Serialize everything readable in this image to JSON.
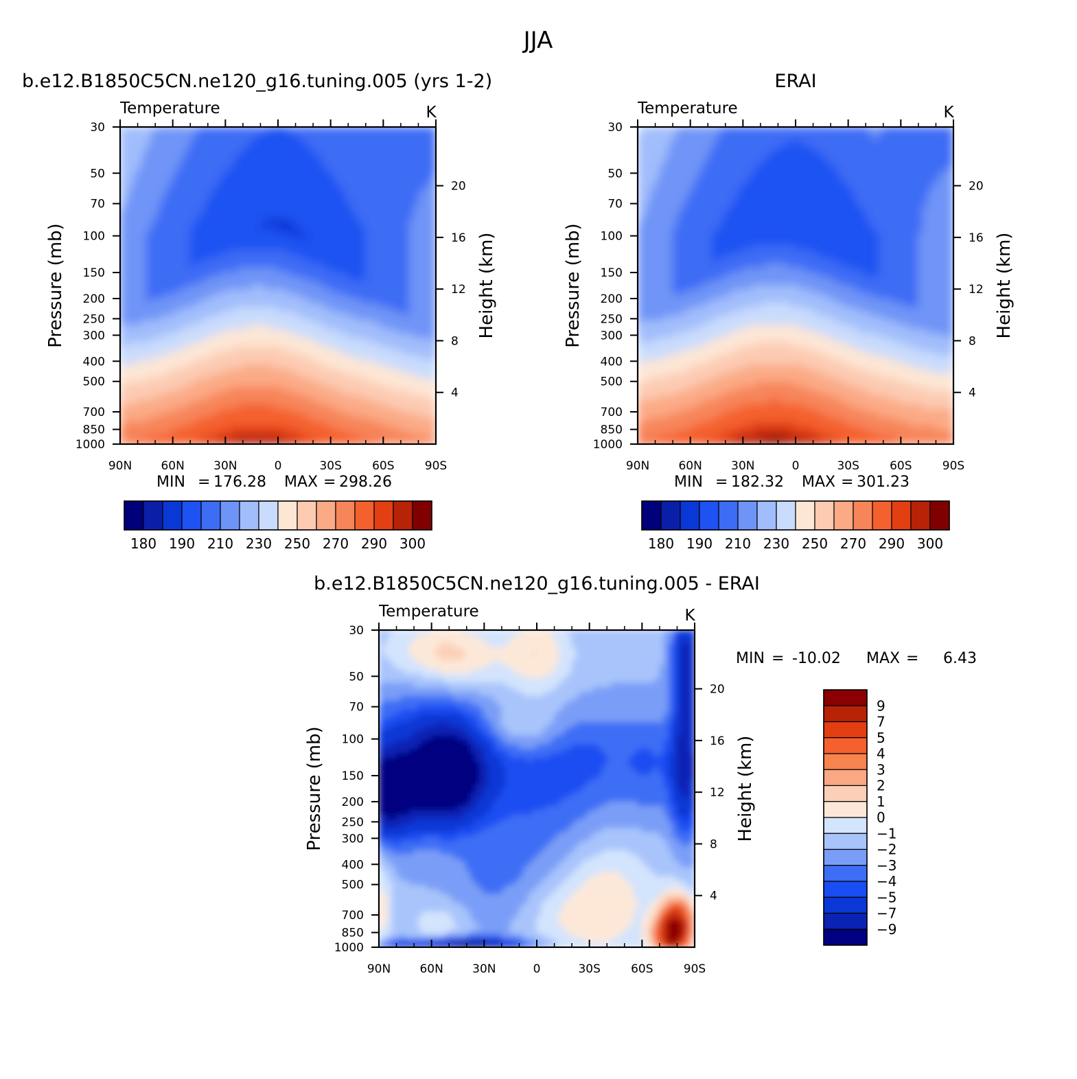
{
  "figure": {
    "title": "JJA",
    "colors": {
      "full_field": [
        "#00007a",
        "#0a1fa8",
        "#0a38d6",
        "#1f52f2",
        "#3d6cf5",
        "#6f94f7",
        "#a1bdfb",
        "#c9dcfd",
        "#fde6d4",
        "#fccbb2",
        "#fbaa86",
        "#f7855a",
        "#f4612f",
        "#e23f12",
        "#b82207",
        "#800000"
      ],
      "diff_field": [
        "#000080",
        "#0a23b4",
        "#0a38d6",
        "#1a4ef2",
        "#3e6ef5",
        "#7a9ef7",
        "#a8c4fb",
        "#d3e4fd",
        "#fde8d8",
        "#fbd0b8",
        "#f9a883",
        "#f7834f",
        "#f4612f",
        "#e23f12",
        "#b82207",
        "#8b0000"
      ]
    }
  },
  "chart_data": [
    {
      "id": "model",
      "type": "contour",
      "title": "b.e12.B1850C5CN.ne120_g16.tuning.005 (yrs 1-2)",
      "subtitle": "Temperature",
      "units": "K",
      "ylabel": "Pressure (mb)",
      "y2label": "Height (km)",
      "xticks": [
        "90N",
        "60N",
        "30N",
        "0",
        "30S",
        "60S",
        "90S"
      ],
      "xlim": [
        90,
        -90
      ],
      "yticks": [
        30,
        50,
        70,
        100,
        150,
        200,
        250,
        300,
        400,
        500,
        700,
        850,
        1000
      ],
      "ylim": [
        1000,
        30
      ],
      "y2ticks": [
        4,
        8,
        12,
        16,
        20
      ],
      "min_label": "MIN",
      "min": "176.28",
      "max_label": "MAX",
      "max": "298.26",
      "colorbar": {
        "levels": [
          180,
          185,
          190,
          200,
          210,
          220,
          230,
          240,
          250,
          260,
          270,
          280,
          290,
          295,
          300
        ],
        "labels": [
          "180",
          "190",
          "210",
          "230",
          "250",
          "270",
          "290",
          "300"
        ]
      }
    },
    {
      "id": "obs",
      "type": "contour",
      "title": "ERAI",
      "subtitle": "Temperature",
      "units": "K",
      "ylabel": "Pressure (mb)",
      "y2label": "Height (km)",
      "xticks": [
        "90N",
        "60N",
        "30N",
        "0",
        "30S",
        "60S",
        "90S"
      ],
      "xlim": [
        90,
        -90
      ],
      "yticks": [
        30,
        50,
        70,
        100,
        150,
        200,
        250,
        300,
        400,
        500,
        700,
        850,
        1000
      ],
      "ylim": [
        1000,
        30
      ],
      "y2ticks": [
        4,
        8,
        12,
        16,
        20
      ],
      "min_label": "MIN",
      "min": "182.32",
      "max_label": "MAX",
      "max": "301.23",
      "colorbar": {
        "levels": [
          180,
          185,
          190,
          200,
          210,
          220,
          230,
          240,
          250,
          260,
          270,
          280,
          290,
          295,
          300
        ],
        "labels": [
          "180",
          "190",
          "210",
          "230",
          "250",
          "270",
          "290",
          "300"
        ]
      }
    },
    {
      "id": "diff",
      "type": "contour",
      "title": "b.e12.B1850C5CN.ne120_g16.tuning.005 - ERAI",
      "subtitle": "Temperature",
      "units": "K",
      "ylabel": "Pressure (mb)",
      "y2label": "Height (km)",
      "xticks": [
        "90N",
        "60N",
        "30N",
        "0",
        "30S",
        "60S",
        "90S"
      ],
      "xlim": [
        90,
        -90
      ],
      "yticks": [
        30,
        50,
        70,
        100,
        150,
        200,
        250,
        300,
        400,
        500,
        700,
        850,
        1000
      ],
      "ylim": [
        1000,
        30
      ],
      "y2ticks": [
        4,
        8,
        12,
        16,
        20
      ],
      "min_label": "MIN",
      "min": "-10.02",
      "max_label": "MAX",
      "max": "6.43",
      "colorbar": {
        "levels": [
          9,
          7,
          5,
          4,
          3,
          2,
          1,
          0,
          -1,
          -2,
          -3,
          -4,
          -5,
          -7,
          -9
        ],
        "labels": [
          "9",
          "7",
          "5",
          "4",
          "3",
          "2",
          "1",
          "0",
          "−1",
          "−2",
          "−3",
          "−4",
          "−5",
          "−7",
          "−9"
        ]
      }
    }
  ]
}
